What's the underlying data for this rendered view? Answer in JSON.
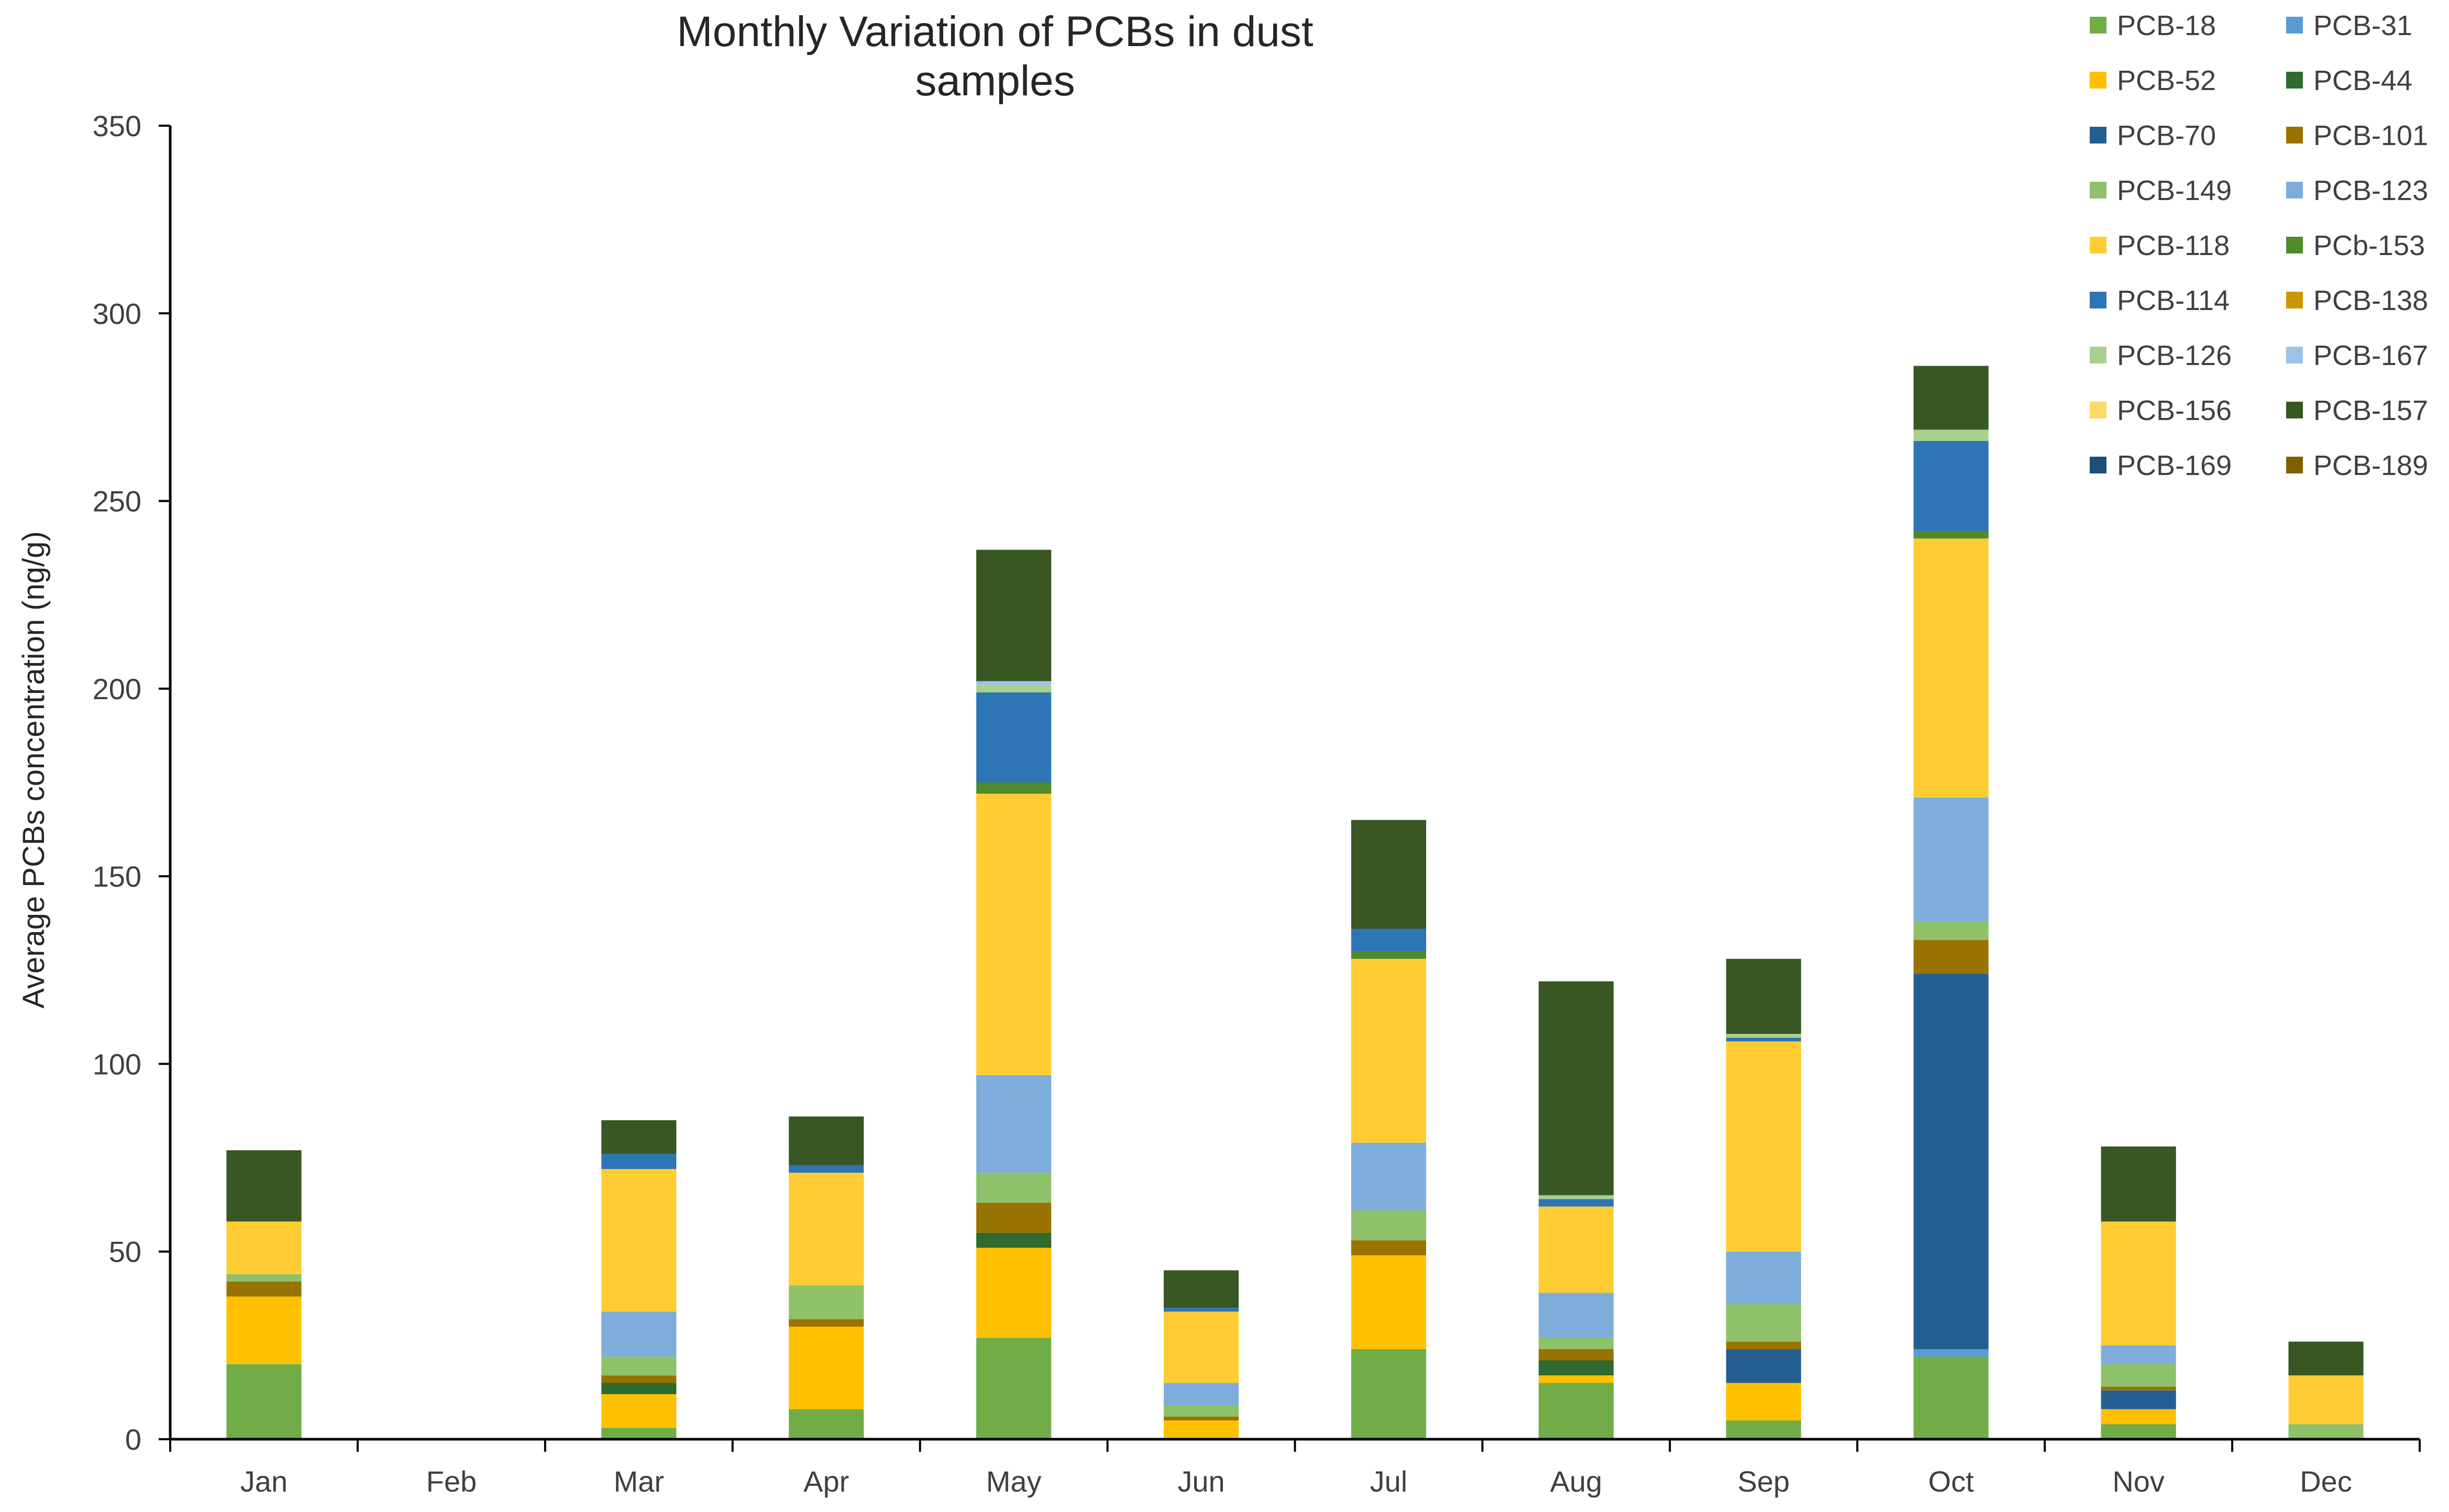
{
  "chart_data": {
    "type": "bar",
    "stacked": true,
    "title": "Monthly Variation of PCBs in dust samples",
    "xlabel": "",
    "ylabel": "Average PCBs concentration (ng/g)",
    "ylim": [
      0,
      350
    ],
    "yticks": [
      0,
      50,
      100,
      150,
      200,
      250,
      300,
      350
    ],
    "grid": false,
    "legend_position": "top-right",
    "categories": [
      "Jan",
      "Feb",
      "Mar",
      "Apr",
      "May",
      "Jun",
      "Jul",
      "Aug",
      "Sep",
      "Oct",
      "Nov",
      "Dec"
    ],
    "series": [
      {
        "name": "PCB-18",
        "color": "#70ad47",
        "values": [
          20,
          0,
          3,
          8,
          27,
          0,
          24,
          15,
          5,
          22,
          4,
          0
        ]
      },
      {
        "name": "PCB-31",
        "color": "#5b9bd5",
        "values": [
          0,
          0,
          0,
          0,
          0,
          0,
          0,
          0,
          0,
          2,
          0,
          0
        ]
      },
      {
        "name": "PCB-52",
        "color": "#ffc000",
        "values": [
          18,
          0,
          9,
          22,
          24,
          5,
          25,
          2,
          10,
          0,
          4,
          0
        ]
      },
      {
        "name": "PCB-44",
        "color": "#2f6a2e",
        "values": [
          0,
          0,
          3,
          0,
          4,
          0,
          0,
          4,
          0,
          0,
          0,
          0
        ]
      },
      {
        "name": "PCB-70",
        "color": "#255e91",
        "values": [
          0,
          0,
          0,
          0,
          0,
          0,
          0,
          0,
          9,
          100,
          5,
          0
        ]
      },
      {
        "name": "PCB-101",
        "color": "#997300",
        "values": [
          4,
          0,
          2,
          2,
          8,
          1,
          4,
          3,
          2,
          9,
          1,
          0
        ]
      },
      {
        "name": "PCB-149",
        "color": "#8fc16a",
        "values": [
          2,
          0,
          5,
          9,
          8,
          3,
          8,
          3,
          10,
          5,
          6,
          4
        ]
      },
      {
        "name": "PCB-123",
        "color": "#7eaddb",
        "values": [
          0,
          0,
          12,
          0,
          26,
          6,
          18,
          12,
          14,
          33,
          5,
          0
        ]
      },
      {
        "name": "PCB-118",
        "color": "#ffcc33",
        "values": [
          14,
          0,
          38,
          30,
          75,
          19,
          49,
          23,
          56,
          69,
          33,
          13
        ]
      },
      {
        "name": "PCb-153",
        "color": "#4f8a2b",
        "values": [
          0,
          0,
          0,
          0,
          3,
          0,
          2,
          0,
          0,
          2,
          0,
          0
        ]
      },
      {
        "name": "PCB-114",
        "color": "#2e75b6",
        "values": [
          0,
          0,
          4,
          2,
          24,
          1,
          6,
          2,
          1,
          24,
          0,
          0
        ]
      },
      {
        "name": "PCB-138",
        "color": "#c99700",
        "values": [
          0,
          0,
          0,
          0,
          0,
          0,
          0,
          0,
          0,
          0,
          0,
          0
        ]
      },
      {
        "name": "PCB-126",
        "color": "#a9d18e",
        "values": [
          0,
          0,
          0,
          0,
          2,
          0,
          0,
          1,
          1,
          3,
          0,
          0
        ]
      },
      {
        "name": "PCB-167",
        "color": "#9dc3e6",
        "values": [
          0,
          0,
          0,
          0,
          1,
          0,
          0,
          0,
          0,
          0,
          0,
          0
        ]
      },
      {
        "name": "PCB-156",
        "color": "#ffd966",
        "values": [
          0,
          0,
          0,
          0,
          0,
          0,
          0,
          0,
          0,
          0,
          0,
          0
        ]
      },
      {
        "name": "PCB-157",
        "color": "#385723",
        "values": [
          19,
          0,
          9,
          13,
          35,
          10,
          29,
          57,
          20,
          17,
          20,
          9
        ]
      },
      {
        "name": "PCB-169",
        "color": "#1f4e79",
        "values": [
          0,
          0,
          0,
          0,
          0,
          0,
          0,
          0,
          0,
          0,
          0,
          0
        ]
      },
      {
        "name": "PCB-189",
        "color": "#7f6000",
        "values": [
          0,
          0,
          0,
          0,
          0,
          0,
          0,
          0,
          0,
          0,
          0,
          0
        ]
      }
    ]
  }
}
